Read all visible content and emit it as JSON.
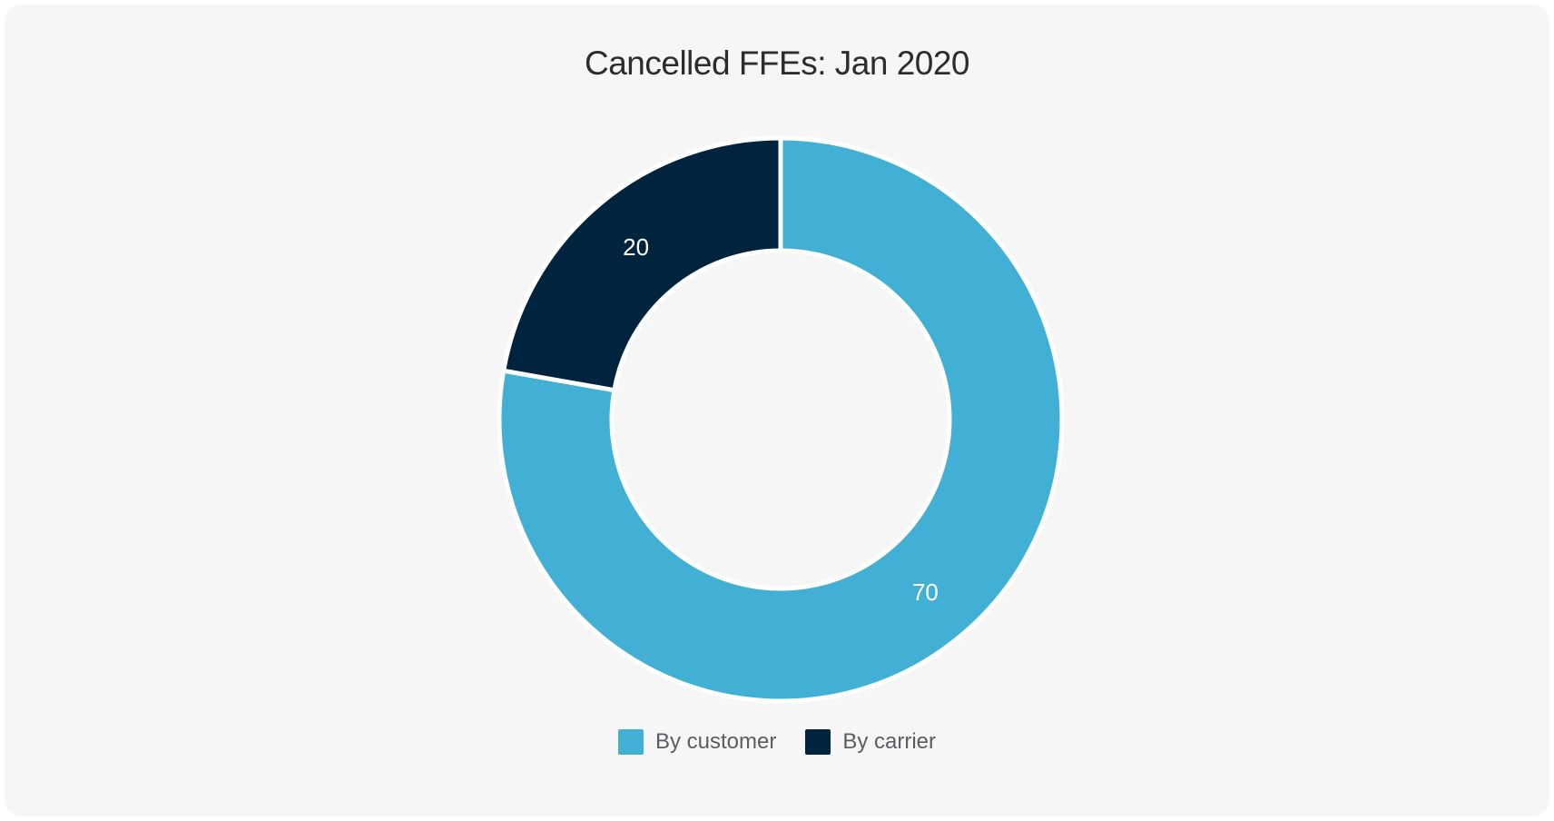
{
  "chart_data": {
    "type": "pie",
    "subtype": "donut",
    "title": "Cancelled FFEs: Jan 2020",
    "series": [
      {
        "name": "By customer",
        "value": 70,
        "color": "#42b0d5"
      },
      {
        "name": "By carrier",
        "value": 20,
        "color": "#00243d"
      }
    ],
    "total": 90,
    "start_angle_deg": 0,
    "direction": "clockwise",
    "inner_radius_ratio": 0.6,
    "data_labels": {
      "show": true,
      "color": "#ffffff",
      "position": "mid-ring",
      "values": [
        70,
        20
      ]
    },
    "legend": {
      "position": "bottom",
      "entries": [
        "By customer",
        "By carrier"
      ]
    },
    "border": {
      "color": "#ffffff",
      "width": 5
    }
  },
  "colors": {
    "page_bg": "#ffffff",
    "card_bg": "#f6f6f7",
    "title_text": "#2c2c2e",
    "legend_text": "#5c5d60"
  }
}
